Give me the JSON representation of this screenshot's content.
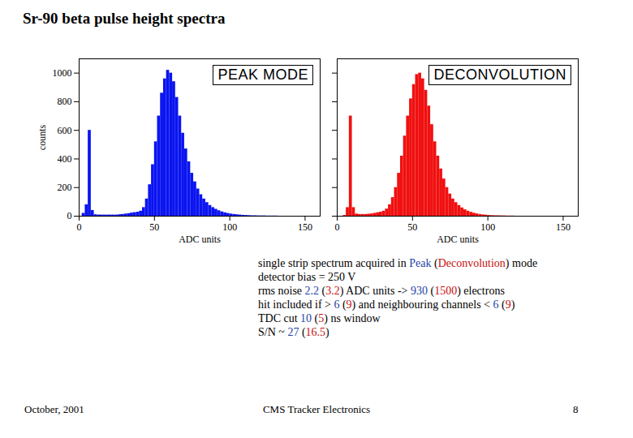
{
  "title": "Sr-90 beta pulse height spectra",
  "chart_data": [
    {
      "type": "histogram",
      "title": "PEAK MODE",
      "color": "#0a14f0",
      "xlabel": "ADC units",
      "ylabel": "counts",
      "xlim": [
        0,
        160
      ],
      "xticks": [
        0,
        50,
        100,
        150
      ],
      "ylim": [
        0,
        1100
      ],
      "yticks": [
        0,
        200,
        400,
        600,
        800,
        1000
      ],
      "grid": false,
      "bins": [
        0,
        2,
        4,
        6,
        8,
        10,
        12,
        14,
        16,
        18,
        20,
        22,
        24,
        26,
        28,
        30,
        32,
        34,
        36,
        38,
        40,
        42,
        44,
        46,
        48,
        50,
        52,
        54,
        56,
        58,
        60,
        62,
        64,
        66,
        68,
        70,
        72,
        74,
        76,
        78,
        80,
        82,
        84,
        86,
        88,
        90,
        92,
        94,
        96,
        98,
        100,
        102,
        104,
        106,
        108,
        110,
        112,
        114,
        116,
        118,
        120,
        122,
        124,
        126,
        128,
        130,
        132,
        134,
        136,
        138,
        140,
        142,
        144,
        146,
        148,
        150,
        152,
        154,
        156,
        158,
        160
      ],
      "counts": [
        0,
        20,
        80,
        600,
        40,
        10,
        8,
        8,
        8,
        8,
        8,
        8,
        8,
        10,
        12,
        15,
        18,
        22,
        25,
        28,
        35,
        60,
        120,
        220,
        360,
        520,
        700,
        860,
        960,
        1020,
        1000,
        940,
        830,
        700,
        580,
        470,
        380,
        300,
        240,
        190,
        150,
        120,
        95,
        75,
        60,
        48,
        38,
        30,
        24,
        19,
        15,
        12,
        10,
        8,
        6,
        5,
        4,
        3,
        3,
        2,
        2,
        2,
        1,
        1,
        1,
        1,
        0,
        0,
        0,
        0,
        0,
        0,
        0,
        0,
        0,
        0,
        0,
        0,
        0,
        0
      ]
    },
    {
      "type": "histogram",
      "title": "DECONVOLUTION",
      "color": "#f01010",
      "xlabel": "ADC units",
      "xlim": [
        0,
        160
      ],
      "xticks": [
        0,
        50,
        100,
        150
      ],
      "ylim": [
        0,
        1100
      ],
      "yticks": [
        0,
        200,
        400,
        600,
        800,
        1000
      ],
      "grid": false,
      "tick_labels": "x",
      "bins": [
        0,
        2,
        4,
        6,
        8,
        10,
        12,
        14,
        16,
        18,
        20,
        22,
        24,
        26,
        28,
        30,
        32,
        34,
        36,
        38,
        40,
        42,
        44,
        46,
        48,
        50,
        52,
        54,
        56,
        58,
        60,
        62,
        64,
        66,
        68,
        70,
        72,
        74,
        76,
        78,
        80,
        82,
        84,
        86,
        88,
        90,
        92,
        94,
        96,
        98,
        100,
        102,
        104,
        106,
        108,
        110,
        112,
        114,
        116,
        118,
        120,
        122,
        124,
        126,
        128,
        130,
        132,
        134,
        136,
        138,
        140,
        142,
        144,
        146,
        148,
        150,
        152,
        154,
        156,
        158,
        160
      ],
      "counts": [
        0,
        0,
        5,
        60,
        700,
        60,
        15,
        12,
        12,
        12,
        14,
        16,
        20,
        24,
        28,
        35,
        50,
        80,
        130,
        200,
        300,
        420,
        560,
        700,
        820,
        920,
        990,
        1000,
        960,
        880,
        770,
        640,
        520,
        420,
        330,
        260,
        200,
        155,
        120,
        95,
        75,
        58,
        45,
        35,
        27,
        21,
        16,
        12,
        9,
        7,
        5,
        4,
        3,
        3,
        2,
        2,
        1,
        1,
        1,
        0,
        0,
        0,
        0,
        0,
        0,
        0,
        0,
        0,
        0,
        0,
        0,
        0,
        0,
        0,
        0,
        0,
        0,
        0,
        0,
        0
      ]
    }
  ],
  "caption": [
    [
      {
        "text": "single strip spectrum acquired in "
      },
      {
        "text": "Peak",
        "color": "#1f3fa8"
      },
      {
        "text": " ("
      },
      {
        "text": "Deconvolution",
        "color": "#c81010"
      },
      {
        "text": ") mode"
      }
    ],
    [
      {
        "text": "detector bias = 250 V"
      }
    ],
    [
      {
        "text": "rms noise "
      },
      {
        "text": "2.2",
        "color": "#1f3fa8"
      },
      {
        "text": " ("
      },
      {
        "text": "3.2",
        "color": "#c81010"
      },
      {
        "text": ") ADC units -> "
      },
      {
        "text": "930",
        "color": "#1f3fa8"
      },
      {
        "text": " ("
      },
      {
        "text": "1500",
        "color": "#c81010"
      },
      {
        "text": ") electrons"
      }
    ],
    [
      {
        "text": "hit included if > "
      },
      {
        "text": "6",
        "color": "#1f3fa8"
      },
      {
        "text": " ("
      },
      {
        "text": "9",
        "color": "#c81010"
      },
      {
        "text": ") and neighbouring channels < "
      },
      {
        "text": "6",
        "color": "#1f3fa8"
      },
      {
        "text": " ("
      },
      {
        "text": "9",
        "color": "#c81010"
      },
      {
        "text": ")"
      }
    ],
    [
      {
        "text": "TDC cut "
      },
      {
        "text": "10",
        "color": "#1f3fa8"
      },
      {
        "text": " ("
      },
      {
        "text": "5",
        "color": "#c81010"
      },
      {
        "text": ") ns window"
      }
    ],
    [
      {
        "text": "S/N ~ "
      },
      {
        "text": "27",
        "color": "#1f3fa8"
      },
      {
        "text": " ("
      },
      {
        "text": "16.5",
        "color": "#c81010"
      },
      {
        "text": ")"
      }
    ]
  ],
  "footer": {
    "left": "October, 2001",
    "center": "CMS Tracker Electronics",
    "right": "8"
  }
}
